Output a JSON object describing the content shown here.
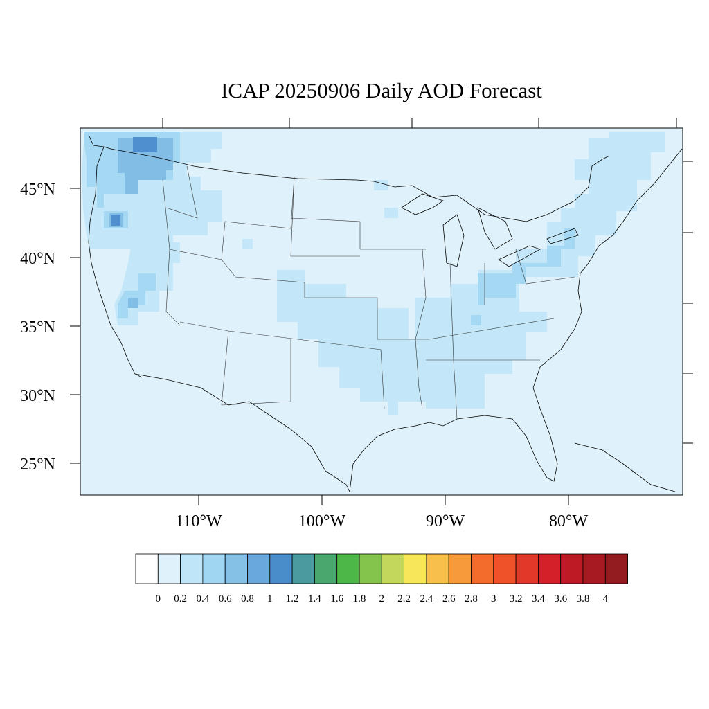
{
  "map": {
    "title": "ICAP 20250906 Daily AOD Forecast",
    "lat_labels": [
      "45°N",
      "40°N",
      "35°N",
      "30°N",
      "25°N"
    ],
    "lon_labels": [
      "110°W",
      "100°W",
      "90°W",
      "80°W"
    ],
    "background_aod_color": "#dff2fb",
    "region": "Contiguous United States"
  },
  "colorbar": {
    "labels": [
      "0",
      "0.2",
      "0.4",
      "0.6",
      "0.8",
      "1",
      "1.2",
      "1.4",
      "1.6",
      "1.8",
      "2",
      "2.2",
      "2.4",
      "2.6",
      "2.8",
      "3",
      "3.2",
      "3.4",
      "3.6",
      "3.8",
      "4"
    ],
    "colors": [
      "#ffffff",
      "#dff2fb",
      "#bfe6f8",
      "#a0d6f2",
      "#85c0e6",
      "#68a8dc",
      "#4a8dcb",
      "#4a9ba0",
      "#4aa86f",
      "#4db848",
      "#85c44c",
      "#c3d75a",
      "#f7e65a",
      "#f8bf4b",
      "#f79a3c",
      "#f36c2b",
      "#ef5128",
      "#e2382a",
      "#d42029",
      "#bd1a26",
      "#a81a22",
      "#921c1f"
    ]
  },
  "aod_regions": [
    {
      "name": "pacific-northwest",
      "level": "0.6-1.0"
    },
    {
      "name": "oregon-hotspot",
      "level": "1.0-1.2"
    },
    {
      "name": "california-nevada",
      "level": "0.4-0.8"
    },
    {
      "name": "central-plains",
      "level": "0.2-0.4"
    },
    {
      "name": "ohio-valley",
      "level": "0.4-0.6"
    },
    {
      "name": "northeast",
      "level": "0.2-0.4"
    },
    {
      "name": "southeast",
      "level": "0.2-0.4"
    }
  ]
}
